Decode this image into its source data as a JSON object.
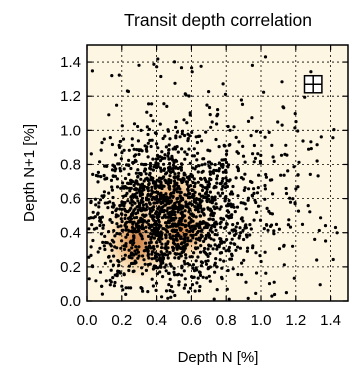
{
  "chart_data": {
    "type": "scatter",
    "title": "Transit depth correlation",
    "xlabel": "Depth N [%]",
    "ylabel": "Depth N+1 [%]",
    "xlim": [
      0.0,
      1.5
    ],
    "ylim": [
      0.0,
      1.5
    ],
    "xticks": [
      "0.0",
      "0.2",
      "0.4",
      "0.6",
      "0.8",
      "1.0",
      "1.2",
      "1.4"
    ],
    "yticks": [
      "0.0",
      "0.2",
      "0.4",
      "0.6",
      "0.8",
      "1.0",
      "1.2",
      "1.4"
    ],
    "grid": true,
    "point_color": "#000000",
    "density_colors": [
      "#fdf3d8",
      "#f6c98a",
      "#e08a3c",
      "#b5561a"
    ],
    "density_peaks": [
      {
        "x": 0.38,
        "y": 0.5,
        "spread": 0.12
      },
      {
        "x": 0.5,
        "y": 0.55,
        "spread": 0.1
      },
      {
        "x": 0.3,
        "y": 0.35,
        "spread": 0.1
      },
      {
        "x": 0.55,
        "y": 0.4,
        "spread": 0.08
      }
    ],
    "point_clusters": [
      {
        "x": 0.45,
        "y": 0.5,
        "sx": 0.22,
        "sy": 0.2,
        "count": 1200
      },
      {
        "x": 0.55,
        "y": 0.55,
        "sx": 0.35,
        "sy": 0.32,
        "count": 550
      },
      {
        "x": 0.7,
        "y": 0.7,
        "sx": 0.55,
        "sy": 0.5,
        "count": 250
      }
    ],
    "error_marker": {
      "x": 1.3,
      "y": 1.27,
      "x_err": 0.05,
      "y_err": 0.05
    }
  }
}
